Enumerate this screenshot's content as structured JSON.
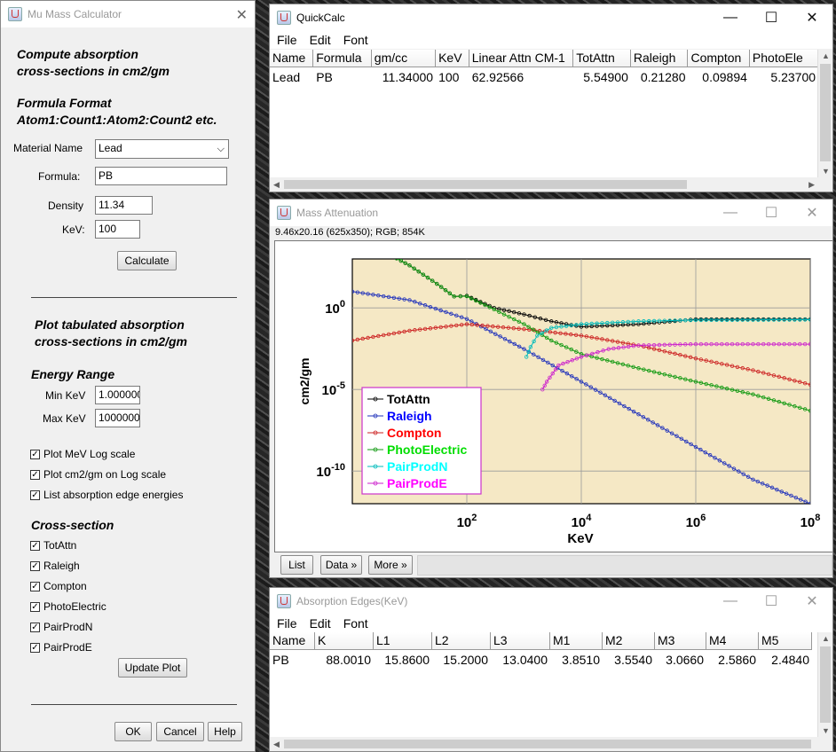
{
  "dialog": {
    "title": "Mu Mass Calculator",
    "heading1": [
      "Compute absorption",
      "cross-sections in cm2/gm"
    ],
    "heading2": [
      "Formula Format",
      "Atom1:Count1:Atom2:Count2 etc."
    ],
    "material_label": "Material Name",
    "material_value": "Lead",
    "formula_label": "Formula:",
    "formula_value": "PB",
    "density_label": "Density",
    "density_value": "11.34",
    "kev_label": "KeV:",
    "kev_value": "100",
    "calculate_label": "Calculate",
    "heading3": [
      "Plot tabulated absorption",
      "cross-sections in cm2/gm"
    ],
    "energy_range_label": "Energy Range",
    "min_kev_label": "Min KeV",
    "min_kev_value": "1.000000",
    "max_kev_label": "Max KeV",
    "max_kev_value": "1000000",
    "options": [
      {
        "label": "Plot MeV Log scale",
        "checked": true
      },
      {
        "label": "Plot cm2/gm on Log scale",
        "checked": true
      },
      {
        "label": "List absorption edge energies",
        "checked": true
      }
    ],
    "cross_section_label": "Cross-section",
    "cross_sections": [
      {
        "label": "TotAttn",
        "checked": true
      },
      {
        "label": "Raleigh",
        "checked": true
      },
      {
        "label": "Compton",
        "checked": true
      },
      {
        "label": "PhotoElectric",
        "checked": true
      },
      {
        "label": "PairProdN",
        "checked": true
      },
      {
        "label": "PairProdE",
        "checked": true
      }
    ],
    "update_plot_label": "Update Plot",
    "ok_label": "OK",
    "cancel_label": "Cancel",
    "help_label": "Help"
  },
  "quickcalc": {
    "title": "QuickCalc",
    "menu": [
      "File",
      "Edit",
      "Font"
    ],
    "columns": [
      "Name",
      "Formula",
      "gm/cc",
      "KeV",
      "Linear Attn CM-1",
      "TotAttn",
      "Raleigh",
      "Compton",
      "PhotoEle"
    ],
    "rows": [
      [
        "Lead",
        "PB",
        "11.34000",
        "100",
        "62.92566",
        "5.54900",
        "0.21280",
        "0.09894",
        "5.23700"
      ]
    ]
  },
  "mass_attenuation": {
    "title": "Mass Attenuation",
    "info": "9.46x20.16  (625x350); RGB; 854K",
    "buttons": [
      "List",
      "Data »",
      "More »"
    ]
  },
  "edges": {
    "title": "Absorption Edges(KeV)",
    "menu": [
      "File",
      "Edit",
      "Font"
    ],
    "columns": [
      "Name",
      "K",
      "L1",
      "L2",
      "L3",
      "M1",
      "M2",
      "M3",
      "M4",
      "M5"
    ],
    "rows": [
      [
        "PB",
        "88.0010",
        "15.8600",
        "15.2000",
        "13.0400",
        "3.8510",
        "3.5540",
        "3.0660",
        "2.5860",
        "2.4840"
      ]
    ]
  },
  "chart_data": {
    "type": "line",
    "xlabel": "KeV",
    "ylabel": "cm2/gm",
    "x_scale": "log",
    "y_scale": "log",
    "xlim": [
      1,
      100000000
    ],
    "ylim": [
      1e-12,
      1000
    ],
    "x_ticks": [
      {
        "base": "10",
        "exp": "2",
        "value": 100
      },
      {
        "base": "10",
        "exp": "4",
        "value": 10000
      },
      {
        "base": "10",
        "exp": "6",
        "value": 1000000
      },
      {
        "base": "10",
        "exp": "8",
        "value": 100000000
      }
    ],
    "y_ticks": [
      {
        "base": "10",
        "exp": "0",
        "value": 1
      },
      {
        "base": "10",
        "exp": "-5",
        "value": 1e-05
      },
      {
        "base": "10",
        "exp": "-10",
        "value": 1e-10
      }
    ],
    "grid": true,
    "legend_position": "bottom-left",
    "series": [
      {
        "name": "TotAttn",
        "color": "#000000",
        "label_color": "#000000",
        "x": [
          1,
          3,
          5,
          10,
          30,
          60,
          100,
          300,
          1000,
          3000,
          10000,
          100000,
          1000000,
          10000000,
          100000000
        ],
        "y": [
          5500,
          3000,
          1500,
          400,
          30,
          5,
          5.5,
          1.0,
          0.4,
          0.15,
          0.07,
          0.1,
          0.2,
          0.2,
          0.2
        ]
      },
      {
        "name": "Raleigh",
        "color": "#2233bb",
        "label_color": "#0000ff",
        "x": [
          1,
          10,
          100,
          1000,
          10000,
          100000,
          1000000,
          10000000,
          100000000
        ],
        "y": [
          10,
          3,
          0.21,
          0.003,
          3e-05,
          3e-07,
          3e-09,
          3e-11,
          1e-12
        ]
      },
      {
        "name": "Compton",
        "color": "#cc2222",
        "label_color": "#ff0000",
        "x": [
          1,
          10,
          100,
          1000,
          10000,
          100000,
          1000000,
          10000000,
          100000000
        ],
        "y": [
          0.01,
          0.04,
          0.1,
          0.05,
          0.02,
          0.005,
          0.0008,
          0.00015,
          2e-05
        ]
      },
      {
        "name": "PhotoElectric",
        "color": "#119911",
        "label_color": "#00dd00",
        "x": [
          1,
          5,
          10,
          30,
          60,
          100,
          300,
          1000,
          3000,
          10000,
          100000,
          1000000,
          10000000,
          100000000
        ],
        "y": [
          5500,
          1500,
          400,
          30,
          5,
          5.2,
          0.8,
          0.1,
          0.01,
          0.0015,
          0.0002,
          3e-05,
          5e-06,
          5e-07
        ]
      },
      {
        "name": "PairProdN",
        "color": "#00bbbb",
        "label_color": "#00ffff",
        "x": [
          1100,
          1300,
          1700,
          3000,
          10000,
          100000,
          1000000,
          100000000
        ],
        "y": [
          0.001,
          0.004,
          0.02,
          0.06,
          0.1,
          0.15,
          0.18,
          0.19
        ]
      },
      {
        "name": "PairProdE",
        "color": "#cc22cc",
        "label_color": "#ff00ff",
        "x": [
          2100,
          2500,
          4000,
          10000,
          30000,
          100000,
          1000000,
          100000000
        ],
        "y": [
          1e-05,
          3e-05,
          0.0003,
          0.001,
          0.003,
          0.005,
          0.006,
          0.006
        ]
      }
    ]
  }
}
